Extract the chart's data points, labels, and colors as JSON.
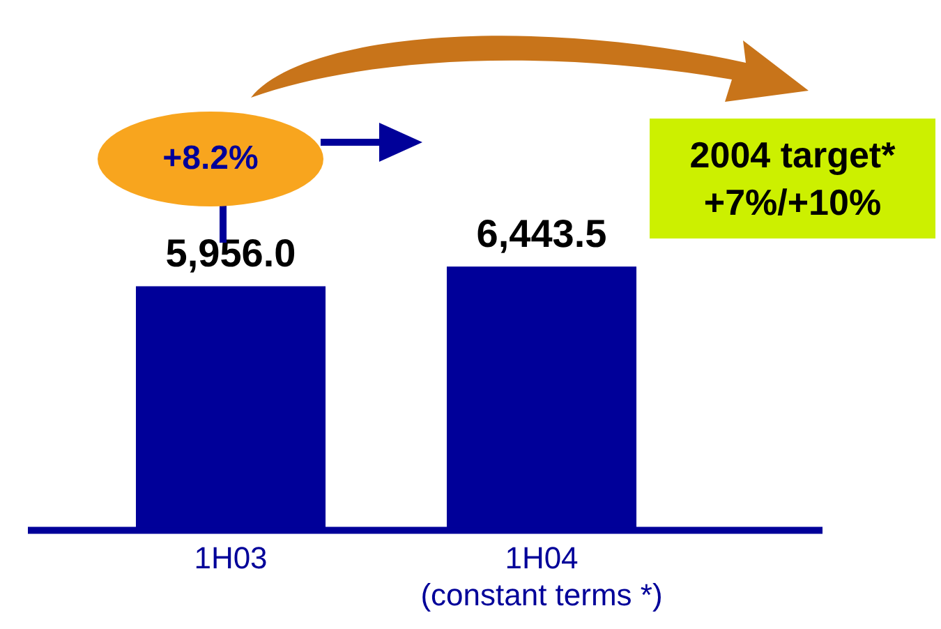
{
  "chart_data": {
    "type": "bar",
    "categories": [
      "1H03",
      "1H04\n(constant terms *)"
    ],
    "values": [
      5956.0,
      6443.5
    ],
    "value_labels": [
      "5,956.0",
      "6,443.5"
    ],
    "color": "#000099",
    "grid": false,
    "legend": false,
    "annotations": [
      "+8.2%",
      "2004 target*\n+7%/+10%"
    ]
  }
}
